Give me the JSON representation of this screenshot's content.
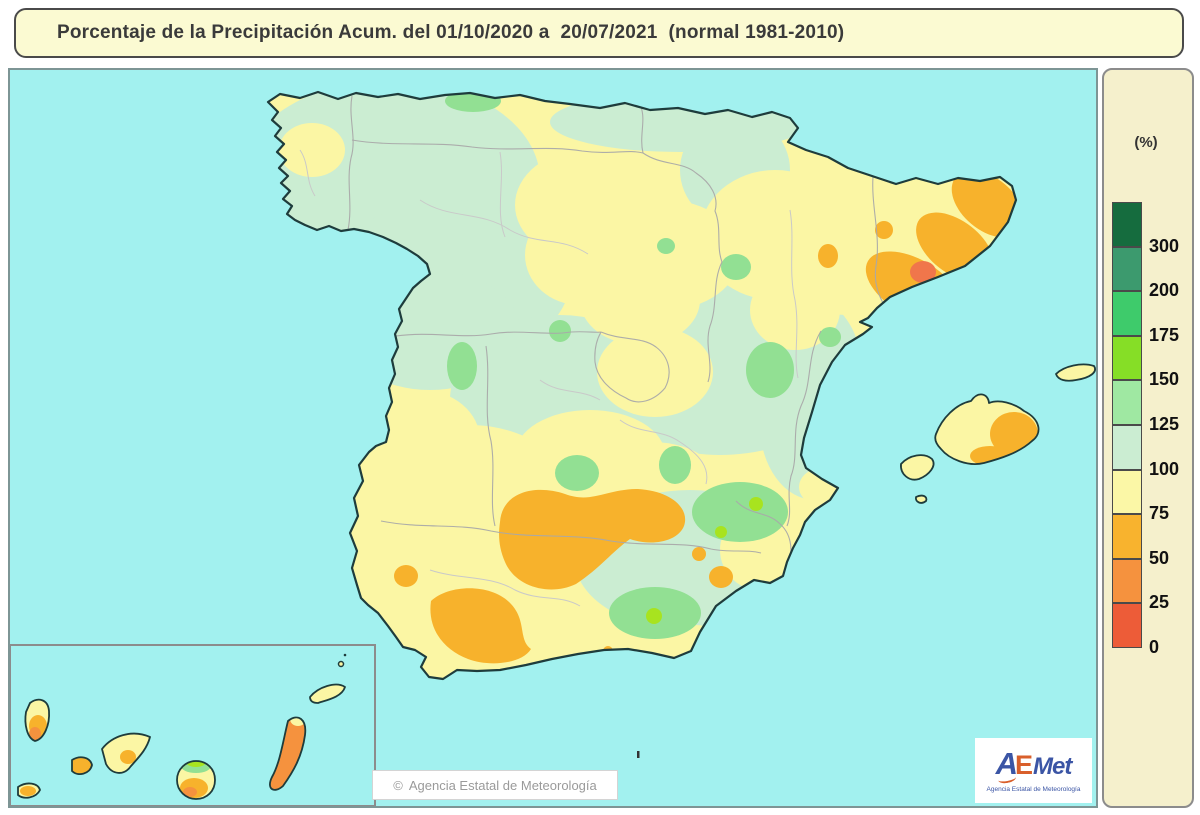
{
  "title": {
    "text": "Porcentaje de la Precipitación Acum. del 01/10/2020 a  20/07/2021  (normal 1981-2010)"
  },
  "legend": {
    "unit_label": "(%)",
    "entries": [
      {
        "label": "300",
        "color": "#156C3E"
      },
      {
        "label": "200",
        "color": "#3C9A6E"
      },
      {
        "label": "175",
        "color": "#3ECB6B"
      },
      {
        "label": "150",
        "color": "#86DE26"
      },
      {
        "label": "125",
        "color": "#9FE8A2"
      },
      {
        "label": "100",
        "color": "#CBEDD2"
      },
      {
        "label": "75",
        "color": "#FBF7A6"
      },
      {
        "label": "50",
        "color": "#F8B32E"
      },
      {
        "label": "25",
        "color": "#F5923E"
      },
      {
        "label": "0",
        "color": "#ED5C38"
      }
    ]
  },
  "footer": {
    "copyright_symbol": "©",
    "copyright_text": "Agencia Estatal de Meteorología"
  },
  "logo": {
    "a": "A",
    "e": "E",
    "met": "Met",
    "subtitle": "Agencia Estatal de Meteorología"
  },
  "colors": {
    "sea": "#A2F1EF",
    "title_bg": "#FBFAD2",
    "title_border": "#4A4A4A",
    "panel_bg": "#F5F0CC",
    "panel_border": "#8C8C8C",
    "map_border": "#7D9595",
    "coastline": "#1E3C3C",
    "region_border": "#A9A9A9",
    "province_border": "#C9C9C9",
    "map_yellow": "#FBF6A4",
    "map_pale_green": "#CBEDD2",
    "map_green": "#92E093",
    "map_lime": "#A8E31F",
    "map_amber": "#F7B22C",
    "map_orange": "#F5923E",
    "map_red": "#F0764B"
  }
}
